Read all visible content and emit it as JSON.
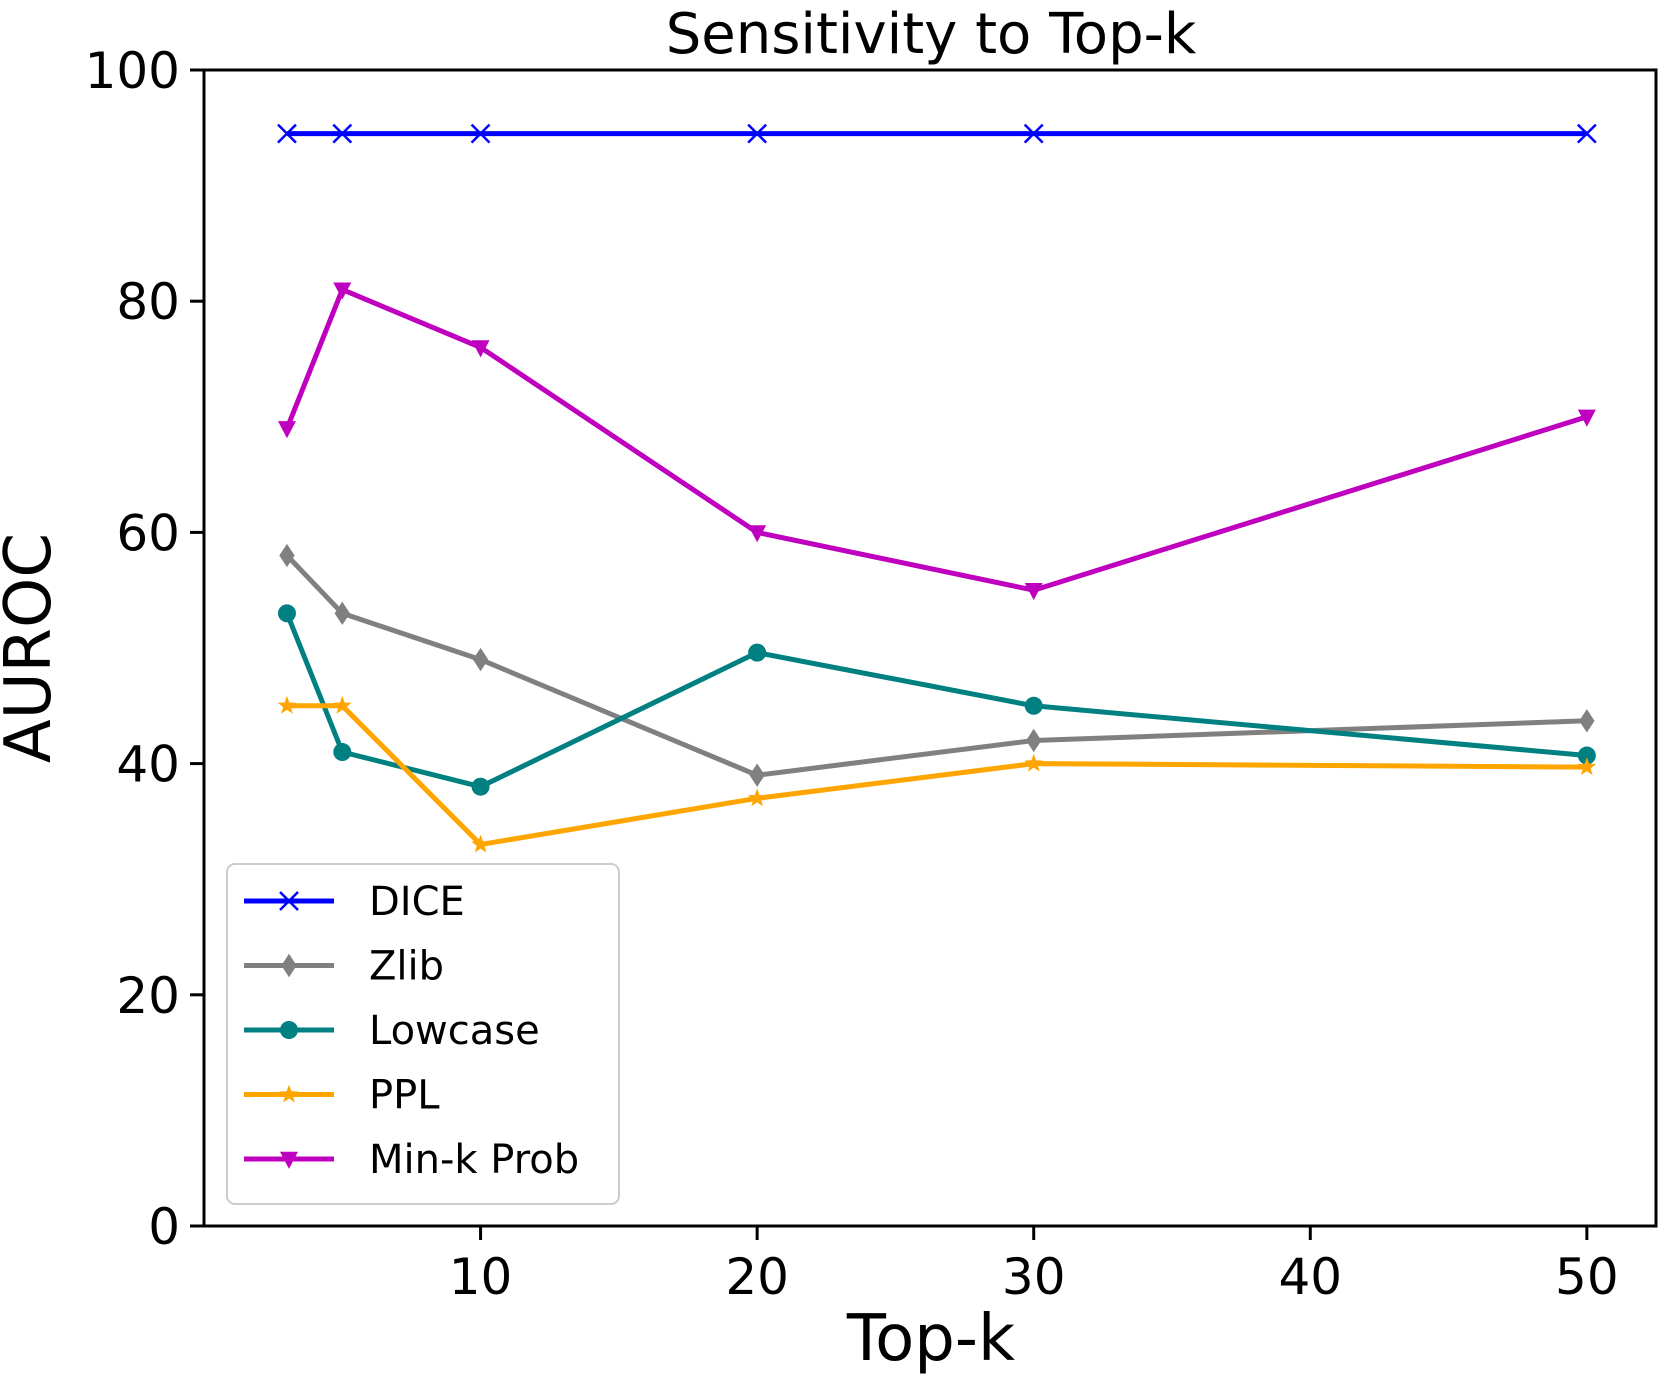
{
  "chart_data": {
    "type": "line",
    "title": "Sensitivity to Top-k",
    "xlabel": "Top-k",
    "ylabel": "AUROC",
    "x": [
      3,
      5,
      10,
      20,
      30,
      50
    ],
    "xlim": [
      0,
      52.5
    ],
    "ylim": [
      0,
      100
    ],
    "xticks": [
      10,
      20,
      30,
      40,
      50
    ],
    "yticks": [
      0,
      20,
      40,
      60,
      80,
      100
    ],
    "grid": false,
    "legend_position": "lower-left",
    "series": [
      {
        "name": "DICE",
        "values": [
          94.5,
          94.5,
          94.5,
          94.5,
          94.5,
          94.5
        ],
        "color": "#0000ff",
        "marker": "x"
      },
      {
        "name": "Zlib",
        "values": [
          58,
          53,
          49,
          39,
          42,
          43.7
        ],
        "color": "#808080",
        "marker": "diamond"
      },
      {
        "name": "Lowcase",
        "values": [
          53,
          41,
          38,
          49.6,
          45,
          40.7
        ],
        "color": "#008080",
        "marker": "circle"
      },
      {
        "name": "PPL",
        "values": [
          45,
          45,
          33,
          37,
          40,
          39.7
        ],
        "color": "#ffa500",
        "marker": "star"
      },
      {
        "name": "Min-k Prob",
        "values": [
          69,
          81,
          76,
          60,
          55,
          70
        ],
        "color": "#bf00bf",
        "marker": "triangle-down"
      }
    ]
  }
}
